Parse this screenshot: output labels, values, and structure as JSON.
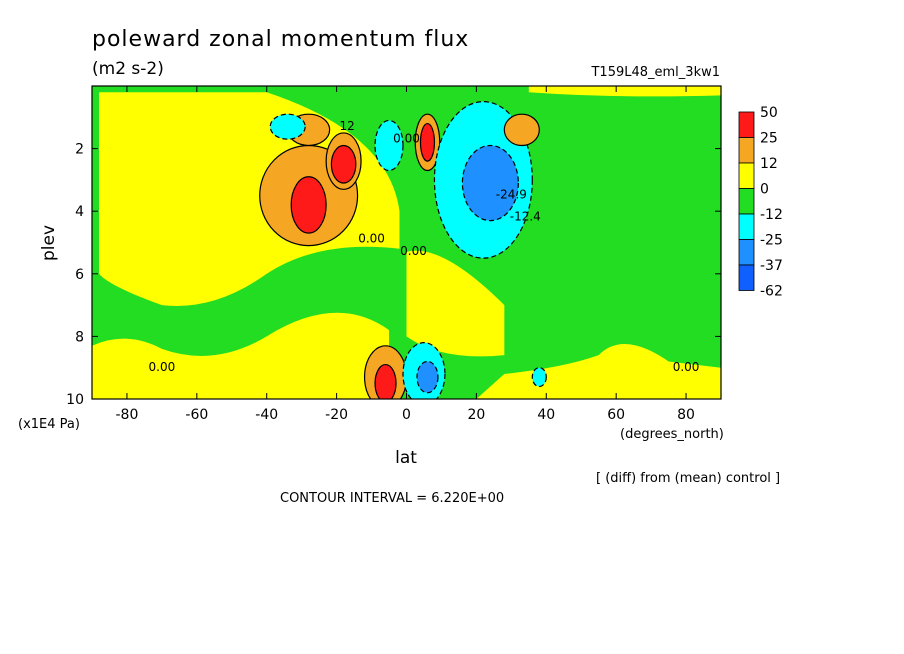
{
  "chart_data": {
    "type": "heatmap",
    "title": "poleward zonal momentum flux",
    "units": "(m2 s-2)",
    "experiment": "T159L48_eml_3kw1",
    "xlabel": "lat",
    "x_units": "(degrees_north)",
    "ylabel": "plev",
    "y_units": "(x1E4 Pa)",
    "xlim": [
      -90,
      90
    ],
    "ylim": [
      10,
      0
    ],
    "x_ticks": [
      -80,
      -60,
      -40,
      -20,
      0,
      20,
      40,
      60,
      80
    ],
    "x_tick_labels": [
      "-80",
      "-60",
      "-40",
      "-20",
      "0",
      "20",
      "40",
      "60",
      "80"
    ],
    "y_ticks": [
      2,
      4,
      6,
      8,
      10
    ],
    "y_tick_labels": [
      "2",
      "4",
      "6",
      "8",
      "10"
    ],
    "note": "[ (diff) from (mean) control ]",
    "contour_interval": "CONTOUR INTERVAL = 6.220E+00",
    "colorbar": {
      "labels": [
        "50",
        "25",
        "12",
        "0",
        "-12",
        "-25",
        "-37",
        "-62"
      ],
      "colors": [
        "#ff1a1a",
        "#f5a623",
        "#ffff00",
        "#22dd22",
        "#00ffff",
        "#1e90ff",
        "#1060ff"
      ]
    },
    "background_level": 0,
    "features": [
      {
        "sign": "positive",
        "level": 25,
        "lat": -28,
        "plev": 3.5,
        "rx": 14,
        "ry": 1.6
      },
      {
        "sign": "positive",
        "level": 50,
        "lat": -28,
        "plev": 3.8,
        "rx": 5,
        "ry": 0.9
      },
      {
        "sign": "positive",
        "level": 25,
        "lat": -18,
        "plev": 2.4,
        "rx": 5,
        "ry": 0.9
      },
      {
        "sign": "positive",
        "level": 50,
        "lat": -18,
        "plev": 2.5,
        "rx": 3.5,
        "ry": 0.6
      },
      {
        "sign": "positive",
        "level": 25,
        "lat": -28,
        "plev": 1.4,
        "rx": 6,
        "ry": 0.5
      },
      {
        "sign": "negative",
        "level": -12,
        "lat": -34,
        "plev": 1.3,
        "rx": 5,
        "ry": 0.4
      },
      {
        "sign": "negative",
        "level": -12,
        "lat": -5,
        "plev": 1.9,
        "rx": 4,
        "ry": 0.8
      },
      {
        "sign": "positive",
        "level": 25,
        "lat": 6,
        "plev": 1.8,
        "rx": 3.5,
        "ry": 0.9
      },
      {
        "sign": "positive",
        "level": 50,
        "lat": 6,
        "plev": 1.8,
        "rx": 2,
        "ry": 0.6
      },
      {
        "sign": "negative",
        "level": -12,
        "lat": 22,
        "plev": 3.0,
        "rx": 14,
        "ry": 2.5
      },
      {
        "sign": "negative",
        "level": -25,
        "lat": 24,
        "plev": 3.1,
        "rx": 8,
        "ry": 1.2
      },
      {
        "sign": "positive",
        "level": 25,
        "lat": 33,
        "plev": 1.4,
        "rx": 5,
        "ry": 0.5
      },
      {
        "sign": "positive",
        "level": 25,
        "lat": -6,
        "plev": 9.3,
        "rx": 6,
        "ry": 1.0
      },
      {
        "sign": "positive",
        "level": 50,
        "lat": -6,
        "plev": 9.5,
        "rx": 3,
        "ry": 0.6
      },
      {
        "sign": "negative",
        "level": -12,
        "lat": 5,
        "plev": 9.2,
        "rx": 6,
        "ry": 1.0
      },
      {
        "sign": "negative",
        "level": -25,
        "lat": 6,
        "plev": 9.3,
        "rx": 3,
        "ry": 0.5
      },
      {
        "sign": "negative",
        "level": -12,
        "lat": 38,
        "plev": 9.3,
        "rx": 2,
        "ry": 0.3
      }
    ],
    "contour_labels": [
      {
        "text": "0.00",
        "lat": -70,
        "plev": 9.1
      },
      {
        "text": "0.00",
        "lat": -10,
        "plev": 5.0
      },
      {
        "text": "0.00",
        "lat": 2,
        "plev": 5.4
      },
      {
        "text": "0.00",
        "lat": 0,
        "plev": 1.8
      },
      {
        "text": "-24.9",
        "lat": 30,
        "plev": 3.6
      },
      {
        "text": "-12.4",
        "lat": 34,
        "plev": 4.3
      },
      {
        "text": "12",
        "lat": -17,
        "plev": 1.4
      },
      {
        "text": "0.00",
        "lat": 80,
        "plev": 9.1
      }
    ]
  }
}
